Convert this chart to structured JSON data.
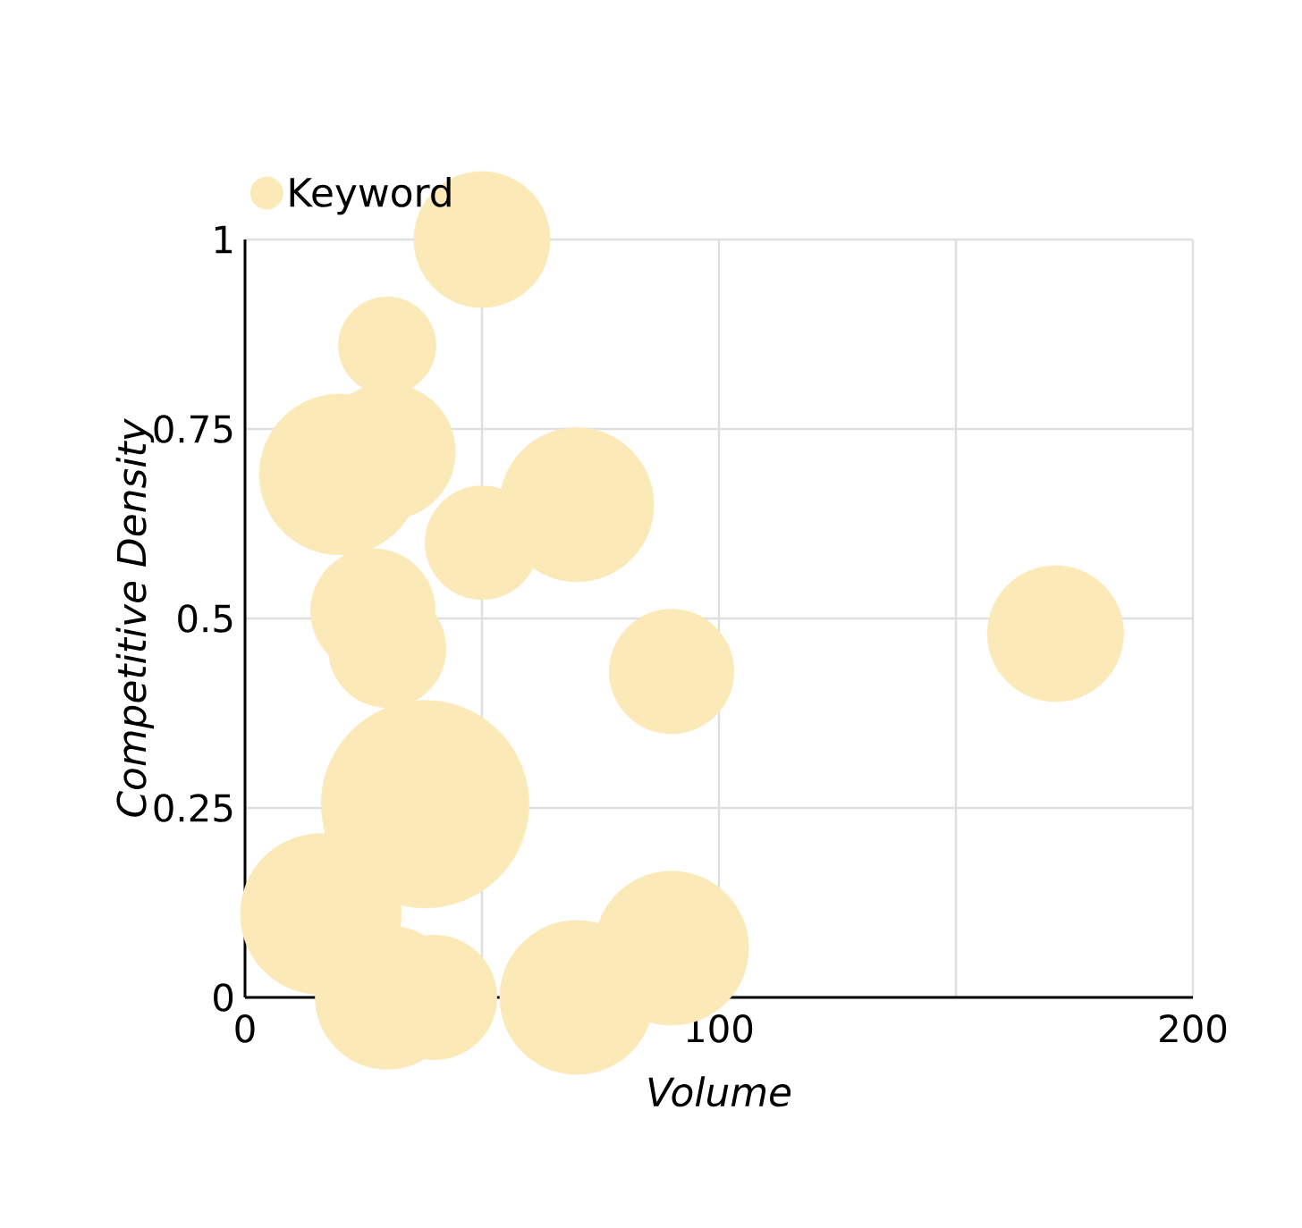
{
  "chart_data": {
    "type": "bubble",
    "xlabel": "Volume",
    "ylabel": "Competitive Density",
    "series": [
      {
        "name": "Keyword",
        "color": "#fbe9b7",
        "x": [
          50,
          30,
          20,
          30,
          70,
          50,
          27,
          30,
          90,
          171,
          38,
          16,
          30,
          40,
          70,
          90
        ],
        "values": [
          1.0,
          0.86,
          0.69,
          0.72,
          0.65,
          0.6,
          0.51,
          0.46,
          0.43,
          0.48,
          0.255,
          0.11,
          0,
          0,
          0,
          0.065
        ],
        "sizes": [
          0.43,
          0.22,
          0.6,
          0.43,
          0.55,
          0.3,
          0.36,
          0.32,
          0.36,
          0.43,
          1,
          0.6,
          0.48,
          0.36,
          0.55,
          0.55
        ]
      }
    ],
    "xlim": [
      0,
      200
    ],
    "ylim": [
      0,
      1
    ],
    "xticks": [
      0,
      {
        "value": 50,
        "label": null
      },
      100,
      {
        "value": 150,
        "label": null
      },
      200
    ],
    "yticks": [
      0,
      0.25,
      0.5,
      0.75,
      1
    ],
    "grid": true,
    "legend": "top left"
  }
}
